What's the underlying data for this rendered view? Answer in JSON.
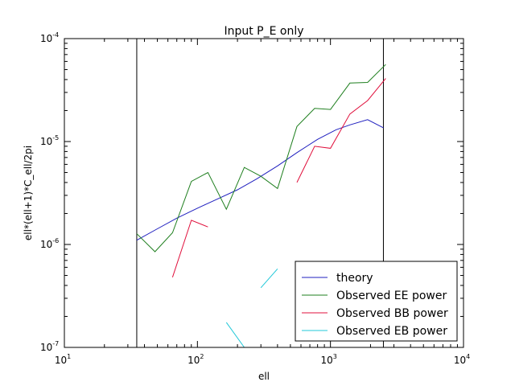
{
  "chart_data": {
    "type": "line",
    "title": "Input P_E only",
    "xlabel": "ell",
    "ylabel": "ell*(ell+1)*C_ell/2pi",
    "xscale": "log",
    "yscale": "log",
    "xlim": [
      10,
      10000
    ],
    "ylim": [
      1e-07,
      0.0001
    ],
    "x_ticks": [
      {
        "base": "10",
        "exp": "1"
      },
      {
        "base": "10",
        "exp": "2"
      },
      {
        "base": "10",
        "exp": "3"
      },
      {
        "base": "10",
        "exp": "4"
      }
    ],
    "y_ticks": [
      {
        "base": "10",
        "exp": "-7"
      },
      {
        "base": "10",
        "exp": "-6"
      },
      {
        "base": "10",
        "exp": "-5"
      },
      {
        "base": "10",
        "exp": "-4"
      }
    ],
    "vertical_lines": [
      35,
      2500
    ],
    "legend_position": "lower right",
    "grid": false,
    "series": [
      {
        "name": "theory",
        "color": "#1f1fbf",
        "points": [
          [
            35,
            1.1e-06
          ],
          [
            50,
            1.42e-06
          ],
          [
            70,
            1.8e-06
          ],
          [
            100,
            2.25e-06
          ],
          [
            140,
            2.75e-06
          ],
          [
            200,
            3.4e-06
          ],
          [
            280,
            4.35e-06
          ],
          [
            400,
            5.8e-06
          ],
          [
            560,
            7.8e-06
          ],
          [
            800,
            1.05e-05
          ],
          [
            1100,
            1.3e-05
          ],
          [
            1400,
            1.45e-05
          ],
          [
            1900,
            1.63e-05
          ],
          [
            2500,
            1.36e-05
          ]
        ]
      },
      {
        "name": "Observed EE power",
        "color": "#1f7f1f",
        "points": [
          [
            35,
            1.27e-06
          ],
          [
            48,
            8.5e-07
          ],
          [
            65,
            1.3e-06
          ],
          [
            90,
            4.1e-06
          ],
          [
            120,
            5e-06
          ],
          [
            165,
            2.2e-06
          ],
          [
            225,
            5.6e-06
          ],
          [
            300,
            4.6e-06
          ],
          [
            400,
            3.5e-06
          ],
          [
            560,
            1.4e-05
          ],
          [
            760,
            2.1e-05
          ],
          [
            1000,
            2.05e-05
          ],
          [
            1400,
            3.7e-05
          ],
          [
            1900,
            3.75e-05
          ],
          [
            2600,
            5.6e-05
          ]
        ]
      },
      {
        "name": "Observed BB power",
        "color": "#e0103c",
        "segments": [
          [
            [
              65,
              4.8e-07
            ],
            [
              90,
              1.72e-06
            ],
            [
              120,
              1.48e-06
            ]
          ],
          [
            [
              560,
              4e-06
            ],
            [
              760,
              9e-06
            ],
            [
              1000,
              8.6e-06
            ],
            [
              1400,
              1.85e-05
            ],
            [
              1900,
              2.5e-05
            ],
            [
              2600,
              4.1e-05
            ]
          ]
        ]
      },
      {
        "name": "Observed EB power",
        "color": "#20c8d8",
        "segments": [
          [
            [
              165,
              1.75e-07
            ],
            [
              225,
              1e-07
            ]
          ],
          [
            [
              300,
              3.8e-07
            ],
            [
              400,
              5.8e-07
            ]
          ]
        ]
      }
    ]
  }
}
